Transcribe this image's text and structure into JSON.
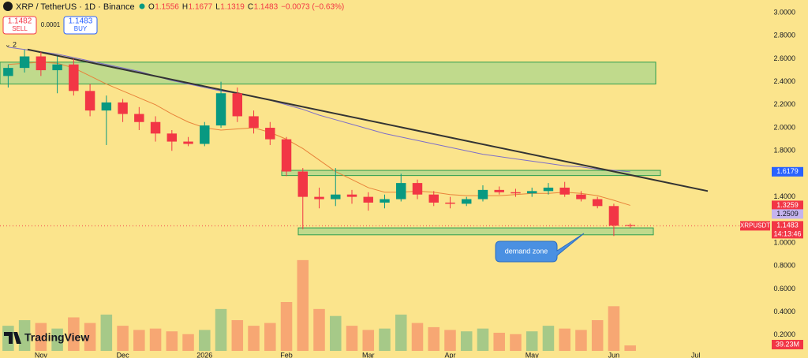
{
  "header": {
    "symbol": "XRP / TetherUS · 1D · Binance",
    "ohlc": [
      "O",
      "1.1556",
      "H",
      "1.1677",
      "L",
      "1.1319",
      "C",
      "1.1483"
    ],
    "change": "−0.0073 (−0.63%)",
    "sell_price": "1.1482",
    "sell": "SELL",
    "spread": "0.0001",
    "buy_price": "1.1483",
    "buy": "BUY",
    "indicator": "2"
  },
  "ui": {
    "ticker_label": "XRPUSDT",
    "countdown": "14:13:46",
    "volume_label": "39.23M",
    "annotation": "demand zone",
    "brand": "TradingView"
  },
  "chart_data": {
    "type": "candlestick",
    "categories": [
      null,
      null,
      "Nov",
      null,
      null,
      null,
      null,
      "Dec",
      null,
      null,
      null,
      null,
      "2026",
      null,
      null,
      null,
      null,
      "Feb",
      null,
      null,
      null,
      null,
      "Mar",
      null,
      null,
      null,
      null,
      "Apr",
      null,
      null,
      null,
      null,
      "May",
      null,
      null,
      null,
      null,
      "Jun",
      null,
      null,
      null,
      null,
      "Jul",
      null,
      null,
      null,
      null
    ],
    "open": [
      2.45,
      2.52,
      2.62,
      2.5,
      2.55,
      2.32,
      2.15,
      2.22,
      2.12,
      2.05,
      1.95,
      1.88,
      1.86,
      2.02,
      2.3,
      2.1,
      2.0,
      1.9,
      1.62,
      1.4,
      1.38,
      1.42,
      1.4,
      1.35,
      1.38,
      1.52,
      1.42,
      1.35,
      1.34,
      1.38,
      1.46,
      1.44,
      1.43,
      1.45,
      1.48,
      1.42,
      1.38,
      1.32,
      1.1556,
      null,
      null,
      null,
      null,
      null,
      null,
      null,
      null
    ],
    "high": [
      2.55,
      2.68,
      2.66,
      2.62,
      2.6,
      2.38,
      2.28,
      2.25,
      2.18,
      2.1,
      1.98,
      1.92,
      2.05,
      2.4,
      2.35,
      2.15,
      2.05,
      1.92,
      1.65,
      1.48,
      1.65,
      1.46,
      1.44,
      1.42,
      1.6,
      1.55,
      1.45,
      1.4,
      1.4,
      1.5,
      1.49,
      1.47,
      1.48,
      1.52,
      1.53,
      1.45,
      1.4,
      1.34,
      1.1677,
      null,
      null,
      null,
      null,
      null,
      null,
      null,
      null
    ],
    "low": [
      2.35,
      2.48,
      2.45,
      2.3,
      2.28,
      2.1,
      1.85,
      2.05,
      1.98,
      1.88,
      1.8,
      1.84,
      1.84,
      2.0,
      2.05,
      1.95,
      1.85,
      1.58,
      1.12,
      1.3,
      1.32,
      1.34,
      1.28,
      1.3,
      1.36,
      1.38,
      1.32,
      1.3,
      1.32,
      1.36,
      1.42,
      1.4,
      1.4,
      1.42,
      1.4,
      1.36,
      1.3,
      1.06,
      1.1319,
      null,
      null,
      null,
      null,
      null,
      null,
      null,
      null
    ],
    "close": [
      2.52,
      2.62,
      2.5,
      2.55,
      2.32,
      2.15,
      2.22,
      2.12,
      2.05,
      1.95,
      1.88,
      1.86,
      2.02,
      2.3,
      2.1,
      2.0,
      1.9,
      1.62,
      1.4,
      1.38,
      1.42,
      1.4,
      1.35,
      1.38,
      1.52,
      1.42,
      1.35,
      1.34,
      1.38,
      1.46,
      1.44,
      1.43,
      1.45,
      1.48,
      1.42,
      1.38,
      1.32,
      1.15,
      1.1483,
      null,
      null,
      null,
      null,
      null,
      null,
      null,
      null
    ],
    "volume": [
      180,
      220,
      200,
      160,
      240,
      200,
      260,
      180,
      150,
      160,
      140,
      120,
      150,
      300,
      220,
      180,
      200,
      350,
      650,
      300,
      250,
      180,
      150,
      160,
      260,
      200,
      170,
      150,
      140,
      160,
      130,
      120,
      140,
      180,
      160,
      150,
      220,
      320,
      39.23,
      null,
      null,
      null,
      null,
      null,
      null,
      null,
      null
    ],
    "series": [
      {
        "color": "#e8833a",
        "values": [
          2.55,
          2.56,
          2.57,
          2.56,
          2.52,
          2.45,
          2.38,
          2.32,
          2.26,
          2.2,
          2.12,
          2.05,
          2.0,
          1.98,
          1.99,
          2.0,
          1.96,
          1.9,
          1.82,
          1.72,
          1.62,
          1.55,
          1.48,
          1.44,
          1.44,
          1.45,
          1.44,
          1.42,
          1.41,
          1.41,
          1.41,
          1.42,
          1.43,
          1.43,
          1.44,
          1.43,
          1.41,
          1.37,
          1.3259,
          null,
          null,
          null,
          null,
          null,
          null,
          null,
          null
        ]
      },
      {
        "color": "#7e6fc9",
        "values": [
          2.7,
          2.68,
          2.66,
          2.64,
          2.61,
          2.58,
          2.55,
          2.52,
          2.49,
          2.45,
          2.41,
          2.38,
          2.35,
          2.32,
          2.3,
          2.27,
          2.24,
          2.2,
          2.16,
          2.11,
          2.07,
          2.03,
          1.99,
          1.95,
          1.92,
          1.89,
          1.86,
          1.83,
          1.8,
          1.77,
          1.75,
          1.73,
          1.71,
          1.69,
          1.67,
          1.66,
          1.64,
          1.63,
          1.6179,
          null,
          null,
          null,
          null,
          null,
          null,
          null,
          null
        ]
      }
    ],
    "up_color": "#089981",
    "down_color": "#f23645",
    "ylim": [
      0,
      3.11
    ],
    "yticks": [
      {
        "value": 3,
        "label": "3.0000"
      },
      {
        "value": 2.8,
        "label": "2.8000"
      },
      {
        "value": 2.6,
        "label": "2.6000"
      },
      {
        "value": 2.4,
        "label": "2.4000"
      },
      {
        "value": 2.2,
        "label": "2.2000"
      },
      {
        "value": 2,
        "label": "2.0000"
      },
      {
        "value": 1.8,
        "label": "1.8000"
      },
      {
        "value": 1.4,
        "label": "1.4000"
      },
      {
        "value": 1,
        "label": "1.0000"
      },
      {
        "value": 0.8,
        "label": "0.8000"
      },
      {
        "value": 0.6,
        "label": "0.6000"
      },
      {
        "value": 0.4,
        "label": "0.4000"
      },
      {
        "value": 0.2,
        "label": "0.2000"
      }
    ],
    "y2lim": [
      0,
      700
    ],
    "zones": [
      {
        "low": 2.38,
        "high": 2.57
      },
      {
        "low": 1.585,
        "high": 1.63
      },
      {
        "low": 1.07,
        "high": 1.13
      }
    ],
    "trendline": [
      2.68,
      1.45
    ],
    "price_labels": [
      {
        "value": 1.6179,
        "color": "#2962ff"
      },
      {
        "value": 1.3259,
        "color": "#f23645"
      },
      {
        "value": 1.2509,
        "color": "#c5b3ee"
      },
      {
        "value": 1.1483,
        "color": "#f23645"
      }
    ]
  }
}
